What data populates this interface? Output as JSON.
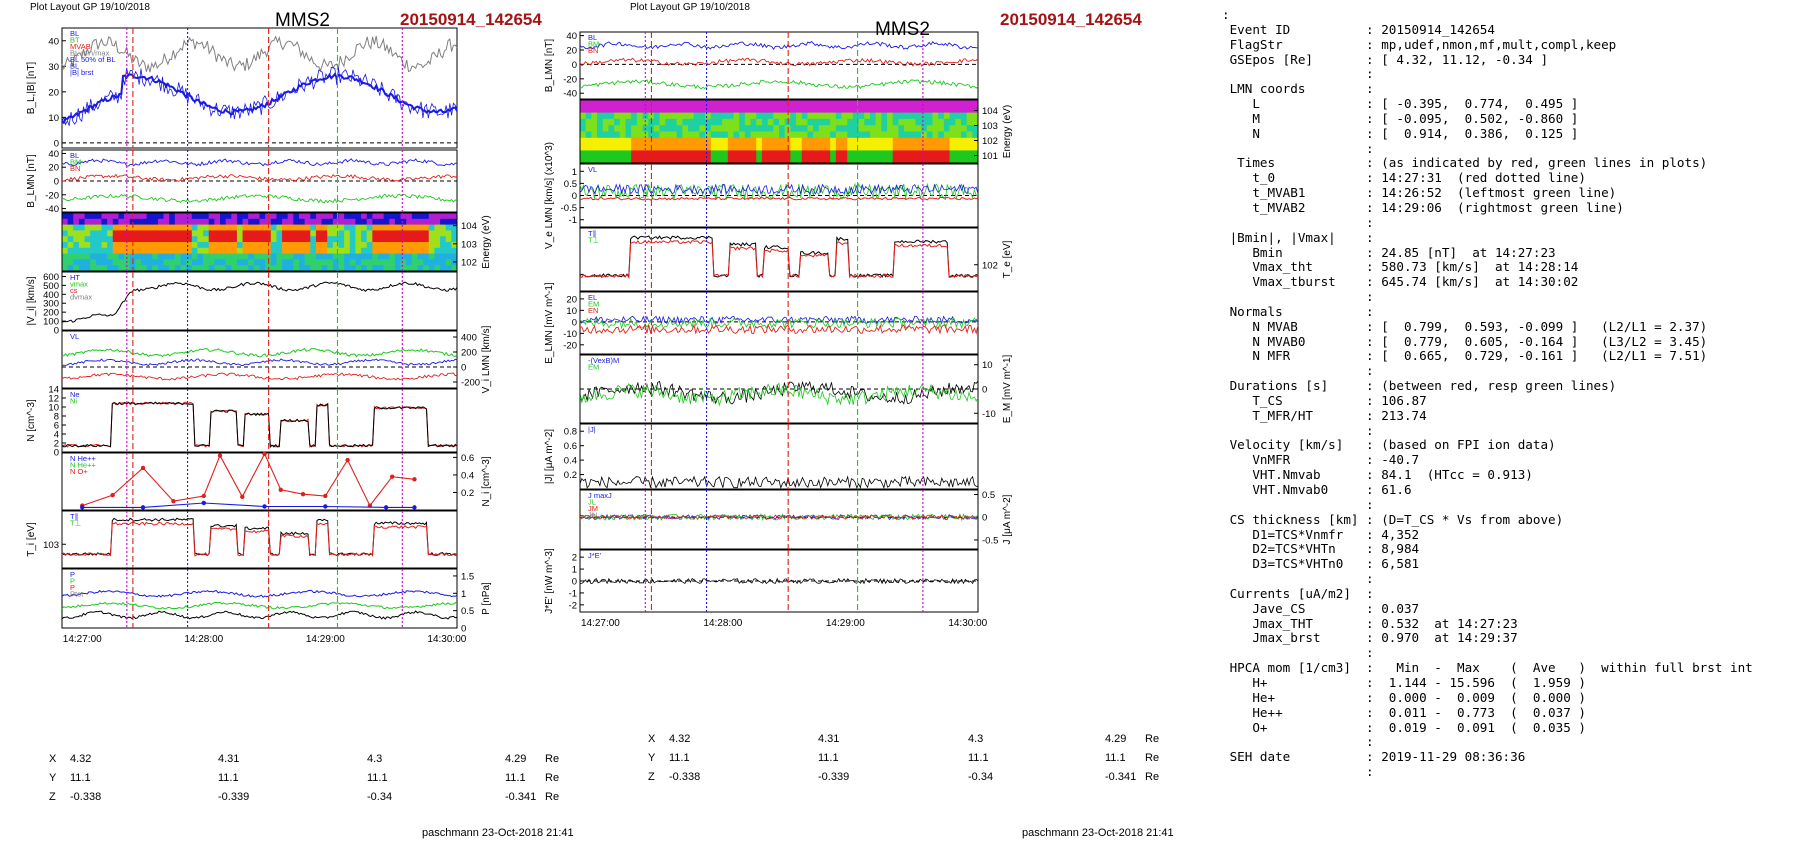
{
  "header": {
    "left_plot_label": "Plot Layout GP 19/10/2018",
    "right_plot_label": "Plot Layout GP 19/10/2018",
    "spacecraft": "MMS2",
    "event": "20150914_142654"
  },
  "footer": {
    "author_stamp": "paschmann 23-Oct-2018 21:41"
  },
  "time_axis": {
    "ticks": [
      "14:27:00",
      "14:28:00",
      "14:29:00",
      "14:30:00"
    ]
  },
  "position_table": {
    "rows": [
      {
        "label": "X",
        "values": [
          "4.32",
          "4.31",
          "4.3",
          "4.29"
        ],
        "unit": "Re"
      },
      {
        "label": "Y",
        "values": [
          "11.1",
          "11.1",
          "11.1",
          "11.1"
        ],
        "unit": "Re"
      },
      {
        "label": "Z",
        "values": [
          "-0.338",
          "-0.339",
          "-0.34",
          "-0.341"
        ],
        "unit": "Re"
      }
    ]
  },
  "colors": {
    "red": "#e0201b",
    "green": "#1ec81e",
    "blue": "#1a1ae6",
    "black": "#000000",
    "gray": "#808080",
    "magenta": "#d000d0",
    "title_red": "#a31515"
  },
  "chart_data": [
    {
      "type": "line",
      "name": "left",
      "panels": [
        {
          "id": "L1",
          "ylabel": "B_L,|B| [nT]",
          "ylim": [
            -2,
            45
          ],
          "yticks": [
            0,
            10,
            20,
            30,
            40
          ],
          "tick_side": "left",
          "legend": [
            "BL",
            "BT",
            "MVAB",
            "BL min/max",
            "BL 50% of BL",
            "BL",
            "|B| brst"
          ]
        },
        {
          "id": "L2",
          "ylabel": "B_LMN [nT]",
          "ylim": [
            -45,
            45
          ],
          "yticks": [
            -40,
            -20,
            0,
            20,
            40
          ],
          "tick_side": "left",
          "legend": [
            "BL",
            "BM",
            "BN"
          ]
        },
        {
          "id": "L3",
          "type": "heatmap",
          "ylabel": "Energy (eV)",
          "yticks": [
            "10^4",
            "10^3",
            "10^2"
          ],
          "tick_side": "right"
        },
        {
          "id": "L4",
          "ylabel": "|V_i| [km/s]",
          "ylim": [
            0,
            650
          ],
          "yticks": [
            0,
            100,
            200,
            300,
            400,
            500,
            600
          ],
          "tick_side": "left",
          "legend": [
            "HT",
            "vmax",
            "cs",
            "dvmax"
          ]
        },
        {
          "id": "L5",
          "ylabel": "V_i LMN [km/s]",
          "ylim": [
            -280,
            480
          ],
          "yticks": [
            -200,
            0,
            200,
            400
          ],
          "tick_side": "right",
          "legend": [
            "VL"
          ]
        },
        {
          "id": "L6",
          "ylabel": "N [cm^-3]",
          "ylim": [
            0,
            14
          ],
          "yticks": [
            0,
            2,
            4,
            6,
            8,
            10,
            12,
            14
          ],
          "tick_side": "left",
          "legend": [
            "Ne",
            "Ni"
          ]
        },
        {
          "id": "L7",
          "ylabel": "N_i [cm^-3]",
          "ylim": [
            0,
            0.65
          ],
          "yticks": [
            0.2,
            0.4,
            0.6
          ],
          "tick_side": "right",
          "legend": [
            "N  He++",
            "N  He++",
            "N  O+"
          ],
          "series": [
            {
              "name": "N He++",
              "color": "#e0201b",
              "x": [
                "14:27:00",
                "14:27:15",
                "14:27:30",
                "14:27:45",
                "14:28:00",
                "14:28:08",
                "14:28:19",
                "14:28:30",
                "14:28:38",
                "14:28:49",
                "14:29:00",
                "14:29:11",
                "14:29:22",
                "14:29:33",
                "14:29:44"
              ],
              "values": [
                0.05,
                0.17,
                0.48,
                0.1,
                0.16,
                0.62,
                0.15,
                0.64,
                0.23,
                0.18,
                0.16,
                0.57,
                0.05,
                0.38,
                0.35
              ]
            },
            {
              "name": "N O+",
              "color": "#1a1ae6",
              "x": [
                "14:27:00",
                "14:27:30",
                "14:28:00",
                "14:28:30",
                "14:29:00",
                "14:29:30",
                "14:29:44"
              ],
              "values": [
                0.03,
                0.03,
                0.08,
                0.04,
                0.04,
                0.03,
                0.03
              ]
            }
          ]
        },
        {
          "id": "L8",
          "ylabel": "T_i [eV]",
          "yticks": [
            "10^3"
          ],
          "tick_side": "left",
          "legend": [
            "T∥",
            "T⊥"
          ]
        },
        {
          "id": "L9",
          "ylabel": "P [nPa]",
          "ylim": [
            0,
            1.7
          ],
          "yticks": [
            0,
            0.5,
            1.0,
            1.5
          ],
          "tick_side": "right",
          "legend": [
            "P",
            "P",
            "P",
            "Ptot"
          ]
        }
      ]
    },
    {
      "type": "line",
      "name": "right",
      "panels": [
        {
          "id": "R1",
          "ylabel": "B_LMN [nT]",
          "ylim": [
            -48,
            45
          ],
          "yticks": [
            -40,
            -20,
            0,
            20,
            40
          ],
          "tick_side": "left",
          "legend": [
            "BL",
            "BM",
            "BN"
          ]
        },
        {
          "id": "R2",
          "type": "heatmap",
          "ylabel": "Energy (eV)",
          "yticks": [
            "10^4",
            "10^3",
            "10^2",
            "10^1"
          ],
          "tick_side": "right"
        },
        {
          "id": "R3",
          "ylabel": "V_e LMN [km/s] (x10^3)",
          "ylim": [
            -1.3,
            1.3
          ],
          "yticks": [
            -1.0,
            -0.5,
            0.0,
            0.5,
            1.0
          ],
          "tick_side": "left",
          "legend": [
            "VL"
          ]
        },
        {
          "id": "R4",
          "ylabel": "T_e [eV]",
          "yticks": [
            "10^2"
          ],
          "tick_side": "right",
          "legend": [
            "T∥",
            "T⊥"
          ]
        },
        {
          "id": "R5",
          "ylabel": "E_LMN [mV m^-1]",
          "ylim": [
            -28,
            26
          ],
          "yticks": [
            -20,
            -10,
            0,
            10,
            20
          ],
          "tick_side": "left",
          "legend": [
            "EL",
            "EM",
            "EN"
          ]
        },
        {
          "id": "R6",
          "ylabel": "E_M [mV m^-1]",
          "ylim": [
            -14,
            14
          ],
          "yticks": [
            -10,
            0,
            10
          ],
          "tick_side": "right",
          "legend": [
            "-(VexB)M",
            "EM"
          ]
        },
        {
          "id": "R7",
          "ylabel": "|J| [μA m^-2]",
          "ylim": [
            0,
            0.9
          ],
          "yticks": [
            0.2,
            0.4,
            0.6,
            0.8
          ],
          "tick_side": "left",
          "legend": [
            "|J|"
          ]
        },
        {
          "id": "R8",
          "ylabel": "J [μA m^-2]",
          "ylim": [
            -0.7,
            0.6
          ],
          "yticks": [
            -0.5,
            0.0,
            0.5
          ],
          "tick_side": "right",
          "legend": [
            "J maxJ",
            "JL",
            "JM",
            "JN"
          ]
        },
        {
          "id": "R9",
          "ylabel": "J*E' [nW m^-3]",
          "ylim": [
            -2.6,
            2.6
          ],
          "yticks": [
            -2,
            -1,
            0,
            1,
            2
          ],
          "tick_side": "left",
          "legend": [
            "J*E'"
          ]
        }
      ]
    }
  ],
  "info_text": [
    ":",
    " Event ID          : 20150914_142654",
    " FlagStr           : mp,udef,nmon,mf,mult,compl,keep",
    " GSEpos [Re]       : [ 4.32, 11.12, -0.34 ]",
    "                   :",
    " LMN coords        :",
    "    L              : [ -0.395,  0.774,  0.495 ]",
    "    M              : [ -0.095,  0.502, -0.860 ]",
    "    N              : [  0.914,  0.386,  0.125 ]",
    "                   :",
    "  Times            : (as indicated by red, green lines in plots)",
    "    t_0            : 14:27:31  (red dotted line)",
    "    t_MVAB1        : 14:26:52  (leftmost green line)",
    "    t_MVAB2        : 14:29:06  (rightmost green line)",
    "                   :",
    " |Bmin|, |Vmax|    :",
    "    Bmin           : 24.85 [nT]  at 14:27:23",
    "    Vmax_tht       : 580.73 [km/s]  at 14:28:14",
    "    Vmax_tburst    : 645.74 [km/s]  at 14:30:02",
    "                   :",
    " Normals           :",
    "    N MVAB         : [  0.799,  0.593, -0.099 ]   (L2/L1 = 2.37)",
    "    N MVAB0        : [  0.779,  0.605, -0.164 ]   (L3/L2 = 3.45)",
    "    N MFR          : [  0.665,  0.729, -0.161 ]   (L2/L1 = 7.51)",
    "                   :",
    " Durations [s]     : (between red, resp green lines)",
    "    T_CS           : 106.87",
    "    T_MFR/HT       : 213.74",
    "                   :",
    " Velocity [km/s]   : (based on FPI ion data)",
    "    VnMFR          : -40.7",
    "    VHT.Nmvab      : 84.1  (HTcc = 0.913)",
    "    VHT.Nmvab0     : 61.6",
    "                   :",
    " CS thickness [km] : (D=T_CS * Vs from above)",
    "    D1=TCS*Vnmfr   : 4,352",
    "    D2=TCS*VHTn    : 8,984",
    "    D3=TCS*VHTn0   : 6,581",
    "                   :",
    " Currents [uA/m2]  :",
    "    Jave_CS        : 0.037",
    "    Jmax_THT       : 0.532  at 14:27:23",
    "    Jmax_brst      : 0.970  at 14:29:37",
    "                   :",
    " HPCA mom [1/cm3]  :   Min  -  Max    (  Ave   )  within full brst int",
    "    H+             :  1.144 - 15.596  (  1.959 )",
    "    He+            :  0.000 -  0.009  (  0.000 )",
    "    He++           :  0.011 -  0.773  (  0.037 )",
    "    O+             :  0.019 -  0.091  (  0.035 )",
    "                   :",
    " SEH date          : 2019-11-29 08:36:36",
    "                   :"
  ]
}
